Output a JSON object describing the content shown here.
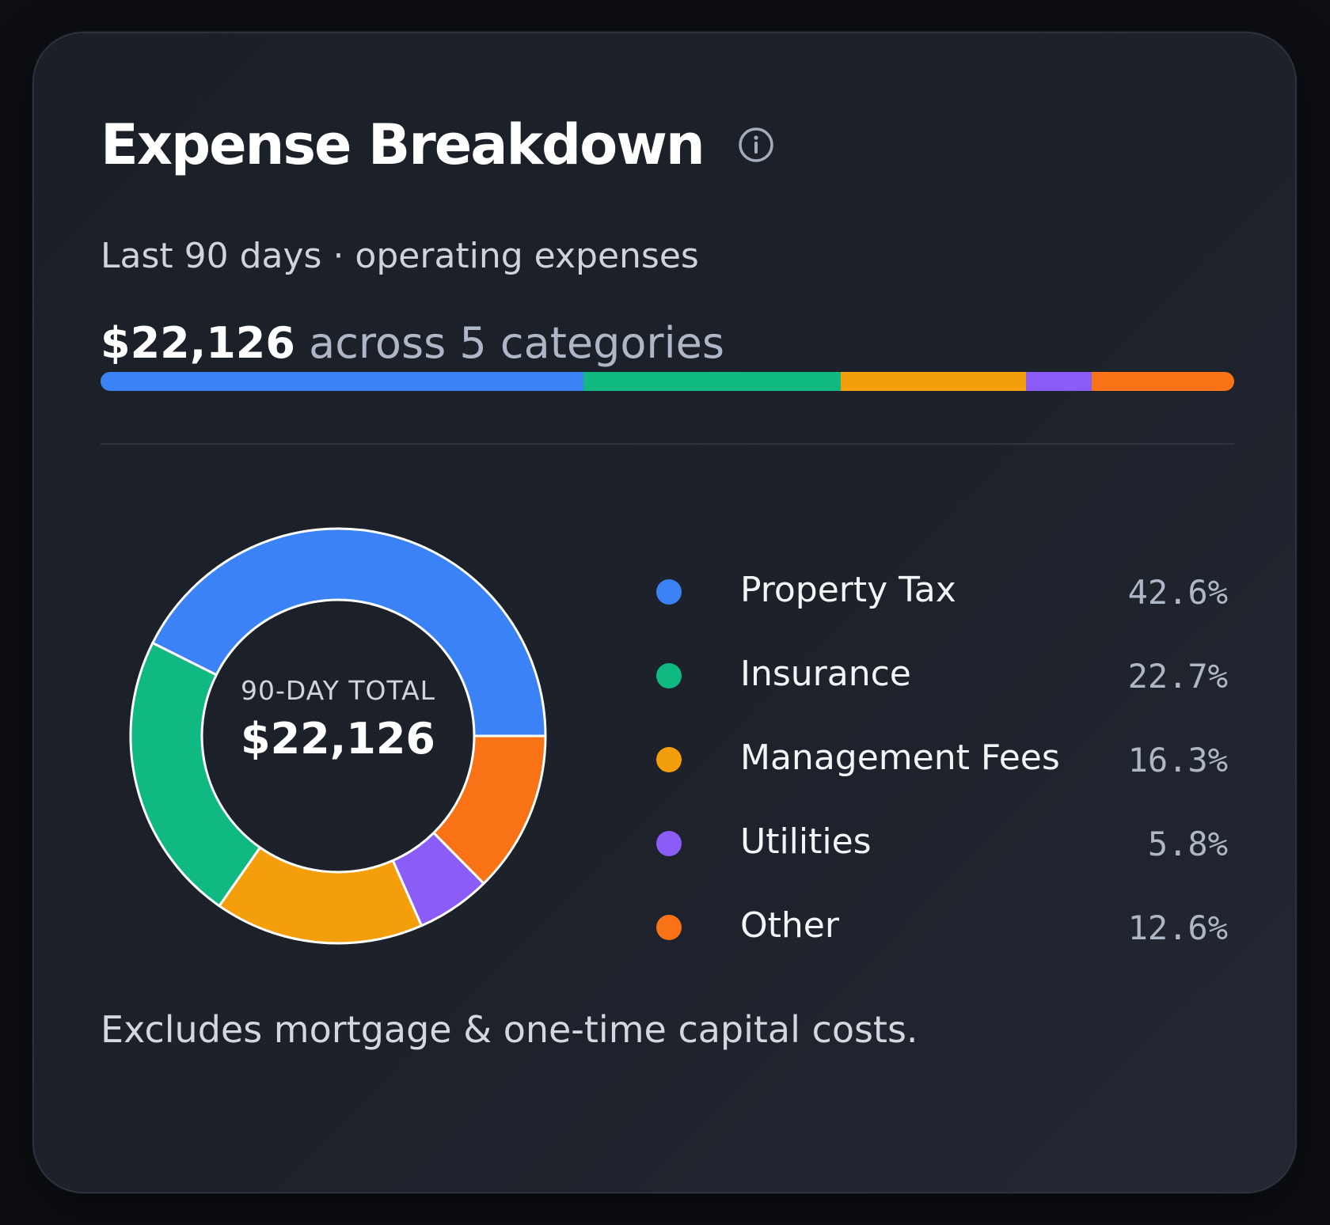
{
  "card": {
    "title": "Expense Breakdown",
    "info_icon": "info-circle-icon",
    "subtitle": "Last 90 days · operating expenses",
    "summary_amount": "$22,126",
    "summary_text": "across 5 categories",
    "footnote": "Excludes mortgage & one-time capital costs."
  },
  "donut_center": {
    "label": "90-DAY TOTAL",
    "value": "$22,126"
  },
  "colors": {
    "property_tax": "#3b82f6",
    "insurance": "#10b981",
    "management_fees": "#f59e0b",
    "utilities": "#8b5cf6",
    "other": "#f97316"
  },
  "chart_data": {
    "type": "pie",
    "title": "Expense Breakdown",
    "total": "$22,126",
    "categories": [
      "Property Tax",
      "Insurance",
      "Management Fees",
      "Utilities",
      "Other"
    ],
    "values": [
      42.6,
      22.7,
      16.3,
      5.8,
      12.6
    ],
    "value_labels": [
      "42.6%",
      "22.7%",
      "16.3%",
      "5.8%",
      "12.6%"
    ],
    "colors": [
      "#3b82f6",
      "#10b981",
      "#f59e0b",
      "#8b5cf6",
      "#f97316"
    ],
    "legend": "right"
  }
}
